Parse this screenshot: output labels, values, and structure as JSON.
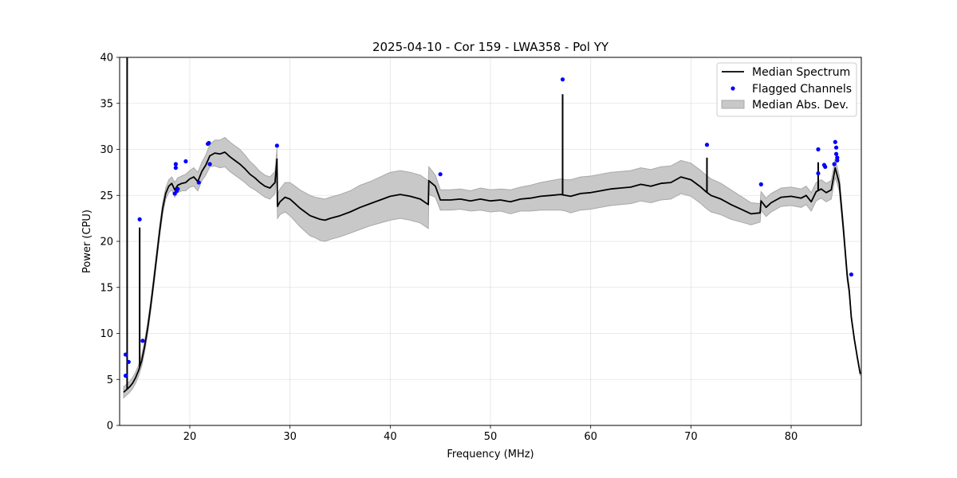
{
  "chart_data": {
    "type": "line",
    "title": "2025-04-10 - Cor 159 - LWA358 - Pol YY",
    "xlabel": "Frequency (MHz)",
    "ylabel": "Power (CPU)",
    "xlim": [
      13.0,
      87.0
    ],
    "ylim": [
      0,
      40
    ],
    "xticks": [
      20,
      30,
      40,
      50,
      60,
      70,
      80
    ],
    "yticks": [
      0,
      5,
      10,
      15,
      20,
      25,
      30,
      35,
      40
    ],
    "grid": true,
    "legend_position": "top-right",
    "series": [
      {
        "name": "Median Spectrum",
        "kind": "line",
        "color": "#000000",
        "x": [
          13.4,
          13.6,
          13.8,
          14.0,
          14.3,
          14.6,
          14.9,
          15.2,
          15.5,
          15.8,
          16.1,
          16.4,
          16.7,
          17.0,
          17.3,
          17.6,
          17.9,
          18.2,
          18.5,
          18.8,
          19.2,
          19.6,
          20.0,
          20.4,
          20.8,
          21.2,
          21.6,
          22.0,
          22.5,
          23.0,
          23.5,
          24.0,
          24.5,
          25.0,
          25.5,
          26.0,
          26.5,
          27.0,
          27.5,
          28.0,
          28.5,
          28.7,
          28.75,
          29.0,
          29.5,
          30.0,
          30.5,
          31.0,
          31.5,
          32.0,
          32.5,
          33.0,
          33.5,
          34.0,
          35.0,
          36.0,
          37.0,
          38.0,
          39.0,
          40.0,
          41.0,
          42.0,
          43.0,
          43.8,
          43.85,
          44.5,
          45.0,
          46.0,
          47.0,
          48.0,
          49.0,
          50.0,
          51.0,
          52.0,
          53.0,
          54.0,
          55.0,
          56.0,
          57.0,
          57.5,
          58.0,
          59.0,
          60.0,
          61.0,
          62.0,
          63.0,
          64.0,
          65.0,
          66.0,
          67.0,
          68.0,
          69.0,
          70.0,
          71.0,
          71.5,
          72.0,
          73.0,
          74.0,
          75.0,
          76.0,
          76.9,
          77.0,
          77.5,
          78.0,
          78.5,
          79.0,
          80.0,
          81.0,
          81.5,
          82.0,
          82.5,
          83.0,
          83.5,
          84.0,
          84.4,
          84.8,
          85.2,
          85.6,
          85.8,
          86.0,
          86.3,
          86.6,
          86.9
        ],
        "y": [
          3.6,
          3.8,
          4.0,
          4.2,
          4.6,
          5.2,
          6.0,
          7.0,
          8.6,
          10.6,
          13.0,
          15.6,
          18.4,
          21.2,
          23.6,
          25.2,
          26.0,
          26.3,
          25.6,
          26.1,
          26.3,
          26.4,
          26.8,
          27.0,
          26.5,
          27.6,
          28.3,
          29.3,
          29.6,
          29.5,
          29.7,
          29.2,
          28.8,
          28.4,
          27.9,
          27.3,
          26.9,
          26.4,
          26.0,
          25.8,
          26.4,
          28.9,
          23.8,
          24.3,
          24.8,
          24.6,
          24.1,
          23.6,
          23.2,
          22.8,
          22.6,
          22.4,
          22.3,
          22.5,
          22.8,
          23.2,
          23.7,
          24.1,
          24.5,
          24.9,
          25.1,
          24.9,
          24.6,
          24.0,
          26.6,
          26.0,
          24.5,
          24.5,
          24.6,
          24.4,
          24.6,
          24.4,
          24.5,
          24.3,
          24.6,
          24.7,
          24.9,
          25.0,
          25.1,
          25.0,
          24.9,
          25.2,
          25.3,
          25.5,
          25.7,
          25.8,
          25.9,
          26.2,
          26.0,
          26.3,
          26.4,
          27.0,
          26.7,
          25.9,
          25.4,
          25.0,
          24.6,
          24.0,
          23.5,
          23.0,
          23.1,
          24.4,
          23.7,
          24.2,
          24.5,
          24.8,
          24.9,
          24.7,
          25.0,
          24.3,
          25.4,
          25.7,
          25.3,
          25.6,
          28.0,
          26.3,
          21.5,
          16.2,
          14.6,
          11.8,
          9.4,
          7.4,
          5.6
        ],
        "mad": [
          0.6,
          0.6,
          0.6,
          0.6,
          0.6,
          0.6,
          0.6,
          0.6,
          0.6,
          0.6,
          0.6,
          0.6,
          0.6,
          0.6,
          0.6,
          0.6,
          0.7,
          0.7,
          0.8,
          0.8,
          0.8,
          0.9,
          0.9,
          1.0,
          1.0,
          1.0,
          1.1,
          1.2,
          1.4,
          1.5,
          1.6,
          1.6,
          1.6,
          1.6,
          1.5,
          1.4,
          1.3,
          1.2,
          1.2,
          1.2,
          1.2,
          1.2,
          1.3,
          1.4,
          1.6,
          1.8,
          1.9,
          2.0,
          2.1,
          2.2,
          2.2,
          2.3,
          2.3,
          2.3,
          2.3,
          2.3,
          2.4,
          2.4,
          2.5,
          2.6,
          2.6,
          2.6,
          2.6,
          2.6,
          1.5,
          1.2,
          1.1,
          1.1,
          1.1,
          1.1,
          1.2,
          1.2,
          1.2,
          1.3,
          1.3,
          1.4,
          1.5,
          1.6,
          1.7,
          1.7,
          1.8,
          1.8,
          1.8,
          1.8,
          1.8,
          1.8,
          1.8,
          1.8,
          1.8,
          1.8,
          1.8,
          1.8,
          1.8,
          1.8,
          1.8,
          1.8,
          1.7,
          1.6,
          1.4,
          1.2,
          1.0,
          1.0,
          1.0,
          1.0,
          1.0,
          1.0,
          1.0,
          1.0,
          1.0,
          1.0,
          1.0,
          1.0,
          1.0,
          1.0,
          1.0,
          0.8,
          0.6,
          0.5,
          0.4,
          0.3,
          0.2,
          0.2,
          0.2
        ]
      },
      {
        "name": "Flagged Channels",
        "kind": "scatter",
        "color": "#0000ff",
        "x": [
          13.6,
          13.6,
          13.9,
          15.0,
          15.3,
          18.5,
          18.6,
          18.6,
          18.7,
          18.8,
          19.6,
          20.9,
          21.8,
          21.9,
          22.0,
          28.7,
          45.0,
          57.2,
          71.6,
          77.0,
          82.7,
          82.7,
          83.3,
          83.4,
          84.3,
          84.4,
          84.5,
          84.5,
          84.6,
          84.6,
          86.0
        ],
        "y": [
          7.7,
          5.4,
          6.9,
          22.4,
          9.2,
          25.2,
          28.0,
          28.4,
          25.5,
          25.7,
          28.7,
          26.4,
          30.6,
          30.7,
          28.4,
          30.4,
          27.3,
          37.6,
          30.5,
          26.2,
          30.0,
          27.4,
          28.3,
          28.1,
          28.4,
          30.8,
          30.2,
          29.5,
          29.1,
          28.8,
          16.4
        ]
      },
      {
        "name": "Median Abs. Dev.",
        "kind": "band",
        "color": "#c8c8c8"
      }
    ],
    "spikes": [
      {
        "x": 13.75,
        "y": 40.0
      },
      {
        "x": 15.0,
        "y": 21.5
      },
      {
        "x": 28.7,
        "y": 29.0
      },
      {
        "x": 57.2,
        "y": 36.0
      },
      {
        "x": 71.6,
        "y": 29.1
      },
      {
        "x": 82.7,
        "y": 28.6
      }
    ]
  }
}
